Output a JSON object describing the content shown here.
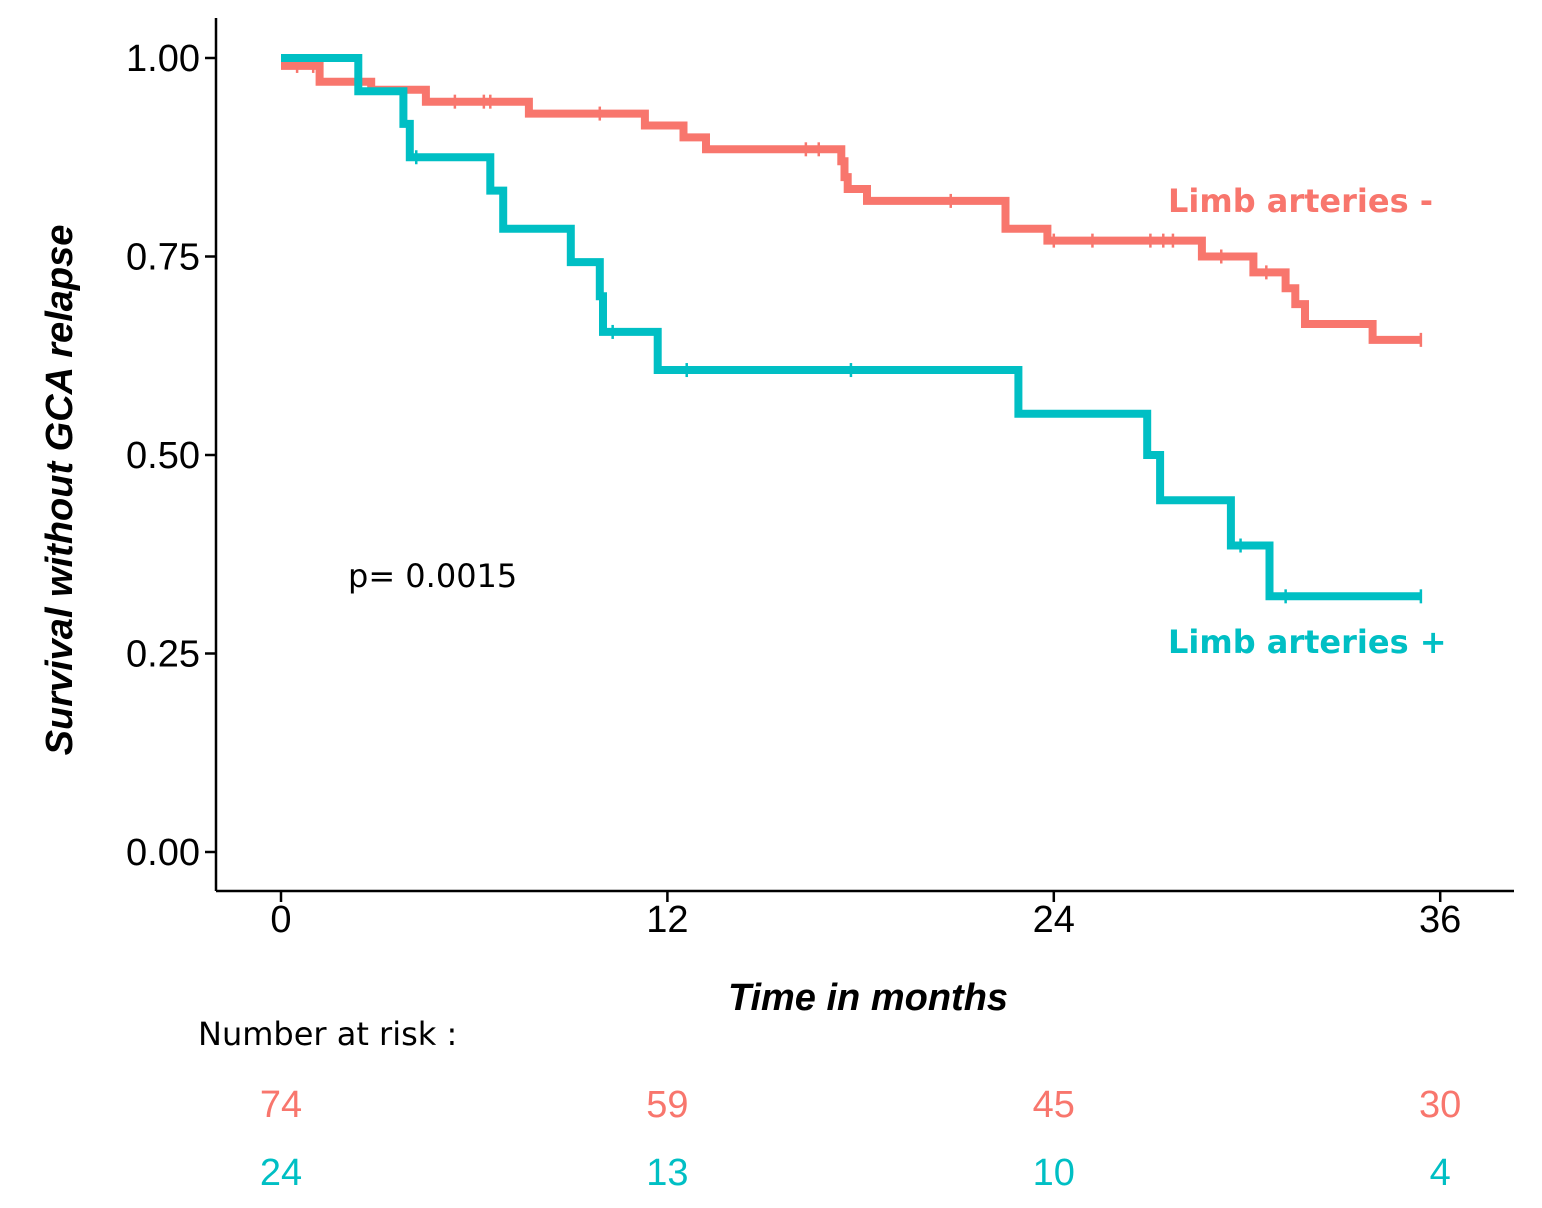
{
  "chart_data": {
    "type": "line",
    "subtype": "kaplan-meier-step",
    "xlabel": "Time in months",
    "ylabel": "Survival without GCA relapse",
    "xlim": [
      -2,
      40
    ],
    "ylim": [
      -0.05,
      1.05
    ],
    "x_ticks": [
      "0",
      "12",
      "24",
      "36"
    ],
    "y_ticks": [
      "0.00",
      "0.25",
      "0.50",
      "0.75",
      "1.00"
    ],
    "grid": false,
    "annotation": "p= 0.0015",
    "series": [
      {
        "name": "Limb arteries -",
        "color": "#F8766D",
        "steps": [
          [
            0,
            0.99
          ],
          [
            1.2,
            0.97
          ],
          [
            2.8,
            0.96
          ],
          [
            4.5,
            0.945
          ],
          [
            7.7,
            0.93
          ],
          [
            11.3,
            0.915
          ],
          [
            12.5,
            0.9
          ],
          [
            13.2,
            0.885
          ],
          [
            17.4,
            0.87
          ],
          [
            17.5,
            0.85
          ],
          [
            17.6,
            0.835
          ],
          [
            18.2,
            0.82
          ],
          [
            22.5,
            0.785
          ],
          [
            23.8,
            0.77
          ],
          [
            28.6,
            0.75
          ],
          [
            30.2,
            0.73
          ],
          [
            31.2,
            0.71
          ],
          [
            31.5,
            0.69
          ],
          [
            31.8,
            0.665
          ],
          [
            33.9,
            0.645
          ],
          [
            35.4,
            0.645
          ]
        ],
        "censor": [
          0.5,
          1.0,
          5.4,
          6.3,
          6.5,
          9.9,
          16.3,
          16.7,
          20.8,
          24.0,
          25.2,
          27.0,
          27.4,
          27.7,
          29.2,
          30.6,
          35.4
        ]
      },
      {
        "name": "Limb arteries +",
        "color": "#00BFC4",
        "steps": [
          [
            0,
            1.0
          ],
          [
            2.4,
            0.958
          ],
          [
            3.8,
            0.917
          ],
          [
            4.0,
            0.875
          ],
          [
            6.5,
            0.833
          ],
          [
            6.9,
            0.785
          ],
          [
            9.0,
            0.743
          ],
          [
            9.9,
            0.7
          ],
          [
            10.0,
            0.655
          ],
          [
            11.7,
            0.607
          ],
          [
            22.9,
            0.552
          ],
          [
            26.9,
            0.5
          ],
          [
            27.3,
            0.443
          ],
          [
            29.5,
            0.386
          ],
          [
            30.7,
            0.322
          ],
          [
            35.4,
            0.322
          ]
        ],
        "censor": [
          4.2,
          10.3,
          12.6,
          17.7,
          29.8,
          31.2,
          35.4
        ]
      }
    ],
    "risk_table": {
      "title": "Number at risk :",
      "times": [
        0,
        12,
        24,
        36
      ],
      "rows": [
        {
          "group": "Limb arteries -",
          "color": "#F8766D",
          "counts": [
            "74",
            "59",
            "45",
            "30"
          ]
        },
        {
          "group": "Limb arteries +",
          "color": "#00BFC4",
          "counts": [
            "24",
            "13",
            "10",
            "4"
          ]
        }
      ]
    }
  }
}
